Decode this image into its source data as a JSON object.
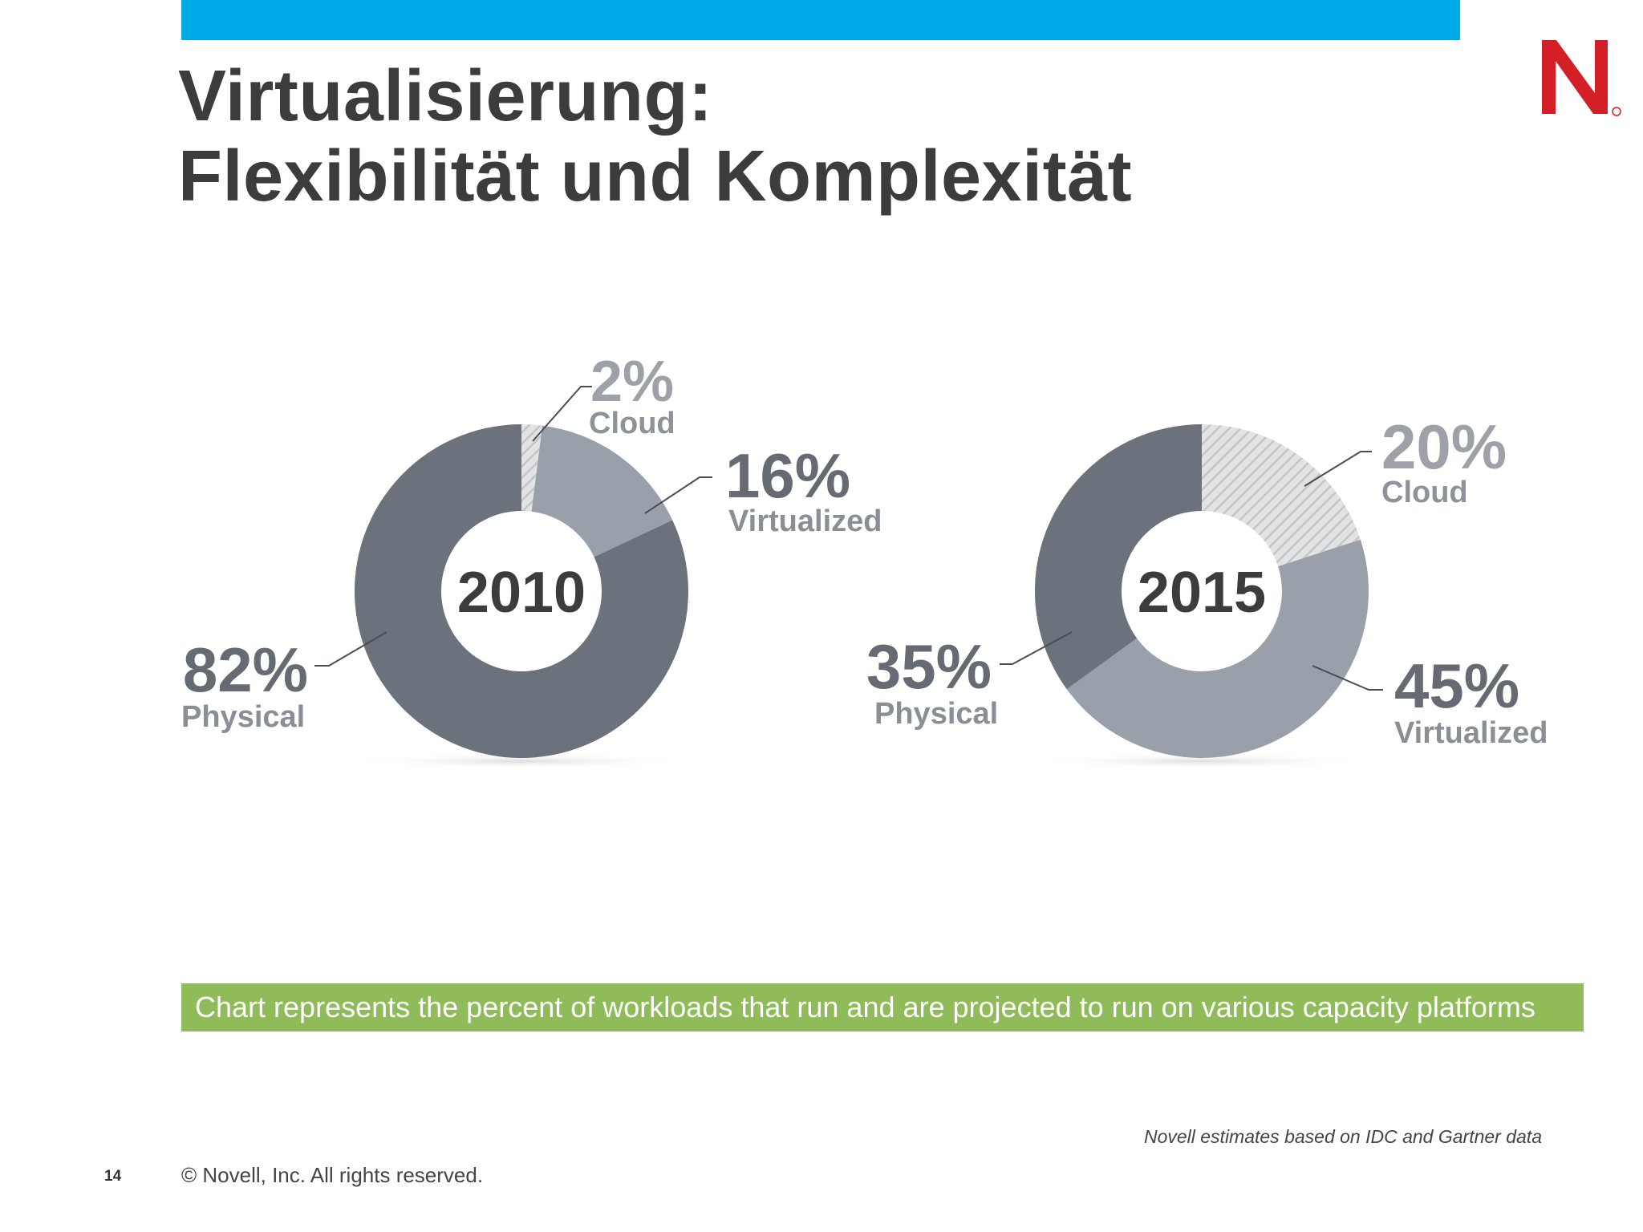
{
  "slide": {
    "title_line1": "Virtualisierung:",
    "title_line2": "Flexibilität und Komplexität",
    "banner": "Chart represents the percent of workloads that run and are projected to run on various capacity platforms",
    "source_note": "Novell estimates based on IDC and Gartner data",
    "page_number": "14",
    "copyright": "©  Novell, Inc.  All rights reserved.",
    "logo_letter": "N"
  },
  "colors": {
    "top_bar": "#00a9e8",
    "banner": "#8fbc59",
    "logo": "#d31f26",
    "physical": "#6b727b",
    "virtualized": "#9aa0a9",
    "cloud_hatch": "#c9cbce",
    "pct_text": "#666b73",
    "cloud_text": "#9ea2a8"
  },
  "chart_data": [
    {
      "type": "pie",
      "center_label": "2010",
      "slices": [
        {
          "name": "Cloud",
          "value": 2,
          "label": "2%",
          "style": "hatched"
        },
        {
          "name": "Virtualized",
          "value": 16,
          "label": "16%",
          "style": "light"
        },
        {
          "name": "Physical",
          "value": 82,
          "label": "82%",
          "style": "dark"
        }
      ]
    },
    {
      "type": "pie",
      "center_label": "2015",
      "slices": [
        {
          "name": "Cloud",
          "value": 20,
          "label": "20%",
          "style": "hatched"
        },
        {
          "name": "Virtualized",
          "value": 45,
          "label": "45%",
          "style": "light"
        },
        {
          "name": "Physical",
          "value": 35,
          "label": "35%",
          "style": "dark"
        }
      ]
    }
  ]
}
